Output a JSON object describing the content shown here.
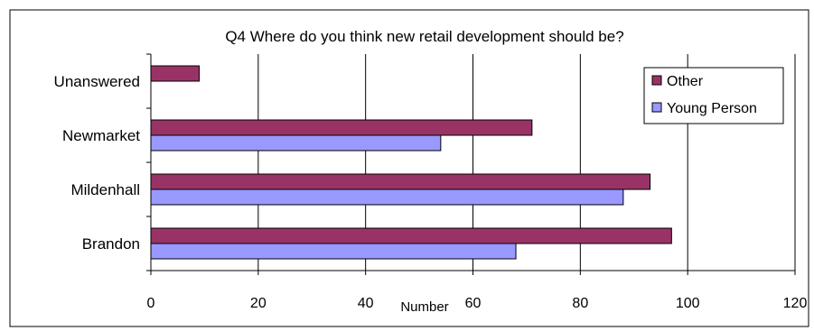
{
  "chart_data": {
    "type": "bar",
    "orientation": "horizontal",
    "title": "Q4 Where do you think new retail development should be?",
    "xlabel": "Number",
    "ylabel": "",
    "categories": [
      "Unanswered",
      "Newmarket",
      "Mildenhall",
      "Brandon"
    ],
    "series": [
      {
        "name": "Other",
        "values": [
          9,
          71,
          93,
          97
        ],
        "color": "#993366"
      },
      {
        "name": "Young Person",
        "values": [
          null,
          54,
          88,
          68
        ],
        "color": "#9999ff"
      }
    ],
    "xlim": [
      0,
      120
    ],
    "xticks": [
      "0",
      "20",
      "40",
      "60",
      "80",
      "100",
      "120"
    ],
    "grid": "vertical",
    "legend": "top-right"
  }
}
